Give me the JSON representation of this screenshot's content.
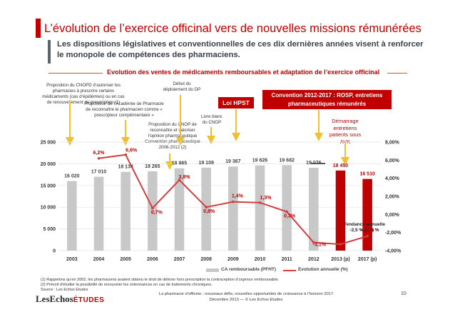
{
  "header": {
    "title": "L’évolution de l’exercice officinal vers de nouvelles missions rémunérées",
    "subtitle": "Les dispositions législatives et conventionnelles de ces dix dernières années visent à renforcer le monopole de compétences des pharmaciens."
  },
  "section_title": "Evolution des ventes de médicaments remboursables  et adaptation de l’exercice officinal",
  "annotations": {
    "a1": "Proposition du CNOPD d’autoriser les pharmacies à prescrire certains médicaments (cas d’épidémies) ou en cas de renouvellement de prescription (1)",
    "a2": "Proposition de l’Académie de Pharmacie de reconnaître le pharmacien comme « prescripteur complémentaire »",
    "a3": "Début du déploiement du DP",
    "a4": "Proposition du CNOP de reconnaître et valoriser l’opinion pharmaceutique Convention pharmaceutique 2006-2012 (2)",
    "a5": "Livre blanc du CNOP",
    "loi_hpst": "Loi HPST",
    "convention": "Convention 2012-2017 : ROSP, entretiens pharmaceutiques rémunérés",
    "demarrage": "Démarrage entretiens patients sous AVK",
    "tendance": "Tendance annuelle -2,5 % à - 3 %"
  },
  "chart_data": {
    "type": "bar",
    "categories": [
      "2003",
      "2004",
      "2005",
      "2006",
      "2007",
      "2008",
      "2009",
      "2010",
      "2011",
      "2012",
      "2013 (p)",
      "2017 (p)"
    ],
    "series": [
      {
        "name": "CA remboursable (PFHT)",
        "axis": "left",
        "values": [
          16020,
          17010,
          18134,
          18265,
          18965,
          19109,
          19367,
          19626,
          19682,
          19076,
          18450,
          16510
        ],
        "labels": [
          "16 020",
          "17 010",
          "18 134",
          "18 265",
          "18 965",
          "19 109",
          "19 367",
          "19 626",
          "19 682",
          "19 076",
          "18 450",
          "16 510"
        ]
      },
      {
        "name": "Evolution annuelle (%)",
        "axis": "right",
        "type": "line",
        "values": [
          null,
          6.2,
          6.6,
          0.7,
          3.8,
          0.8,
          1.4,
          1.3,
          0.3,
          -3.1,
          -3.3,
          -2.4
        ],
        "labels": [
          "",
          "6,2%",
          "6,6%",
          "0,7%",
          "3,8%",
          "0,8%",
          "1,4%",
          "1,3%",
          "0,3%",
          "-3,1%",
          "",
          "-2,4%"
        ]
      }
    ],
    "y_left": {
      "min": 0,
      "max": 25000,
      "ticks": [
        "0",
        "5 000",
        "10 000",
        "15 000",
        "20 000",
        "25 000"
      ]
    },
    "y_right": {
      "min": -4,
      "max": 8,
      "ticks": [
        "-4,00%",
        "-2,00%",
        "0,00%",
        "2,00%",
        "4,00%",
        "6,00%",
        "8,00%"
      ]
    },
    "legend": [
      "CA remboursable (PFHT)",
      "Evolution annuelle (%)"
    ],
    "colors": {
      "bar": "#c8c8c8",
      "bar_projected": "#c00000",
      "line": "#d04040",
      "text": "#c00000"
    }
  },
  "footnotes": [
    "(1) Rappelons qu’en 2002, les pharmaciens avaient obtenu le droit de délivrer hors prescription la contraception d’urgence remboursable.",
    "(2) Prévoit d’étudier la possibilité de renouveler  les ordonnances en cas de traitements chroniques.",
    "Source : Les Echos Etudes"
  ],
  "footer": {
    "line1": "La pharmacie d’officine : nouveaux défis, nouvelles opportunités de croissance à l’horizon 2017",
    "line2": "Décembre 2013 — © Les Echos Etudes",
    "logo_main": "LesEchos",
    "logo_sub": "ÉTUDES",
    "page": "10"
  }
}
